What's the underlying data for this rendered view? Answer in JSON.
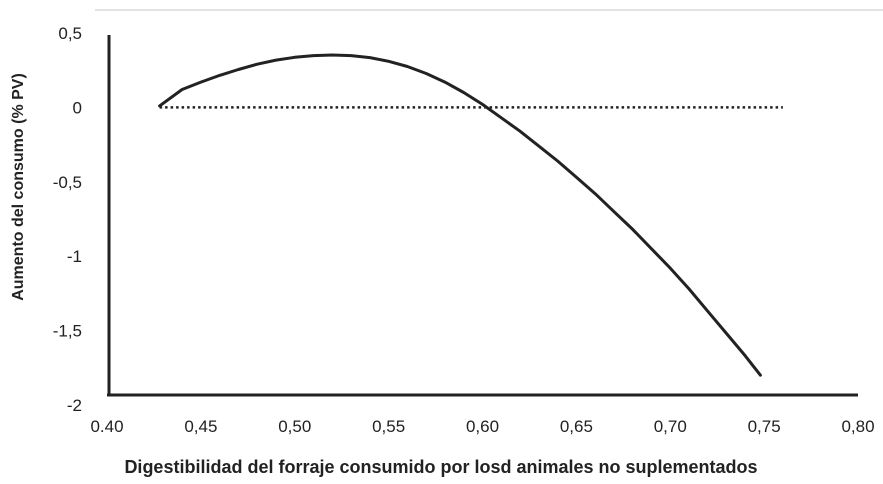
{
  "chart_data": {
    "type": "line",
    "title": "",
    "xlabel": "Digestibilidad del forraje consumido por losd animales no suplementados",
    "ylabel": "Aumento del consumo (% PV)",
    "xlim": [
      0.4,
      0.8
    ],
    "ylim": [
      -2,
      0.5
    ],
    "x_ticks": [
      "0.40",
      "0,45",
      "0,50",
      "0,55",
      "0,60",
      "0,65",
      "0,70",
      "0,75",
      "0,80"
    ],
    "y_ticks": [
      "0,5",
      "0",
      "-0,5",
      "-1",
      "-1,5",
      "-2"
    ],
    "x_tick_values": [
      0.4,
      0.45,
      0.5,
      0.55,
      0.6,
      0.65,
      0.7,
      0.75,
      0.8
    ],
    "y_tick_values": [
      0.5,
      0,
      -0.5,
      -1,
      -1.5,
      -2
    ],
    "grid": false,
    "legend": "none",
    "series": [
      {
        "style": "solid",
        "color": "#222222",
        "x": [
          0.428,
          0.44,
          0.45,
          0.46,
          0.47,
          0.48,
          0.49,
          0.5,
          0.51,
          0.52,
          0.53,
          0.54,
          0.55,
          0.56,
          0.57,
          0.58,
          0.59,
          0.6,
          0.61,
          0.62,
          0.63,
          0.64,
          0.65,
          0.66,
          0.67,
          0.68,
          0.69,
          0.7,
          0.71,
          0.72,
          0.73,
          0.74,
          0.748
        ],
        "y": [
          0.01,
          0.12,
          0.17,
          0.215,
          0.255,
          0.29,
          0.318,
          0.337,
          0.348,
          0.352,
          0.348,
          0.335,
          0.31,
          0.275,
          0.228,
          0.17,
          0.1,
          0.02,
          -0.07,
          -0.16,
          -0.26,
          -0.36,
          -0.47,
          -0.58,
          -0.7,
          -0.82,
          -0.95,
          -1.08,
          -1.22,
          -1.37,
          -1.52,
          -1.67,
          -1.8
        ]
      },
      {
        "style": "dotted",
        "color": "#222222",
        "x": [
          0.428,
          0.76
        ],
        "y": [
          0,
          0
        ]
      }
    ]
  }
}
